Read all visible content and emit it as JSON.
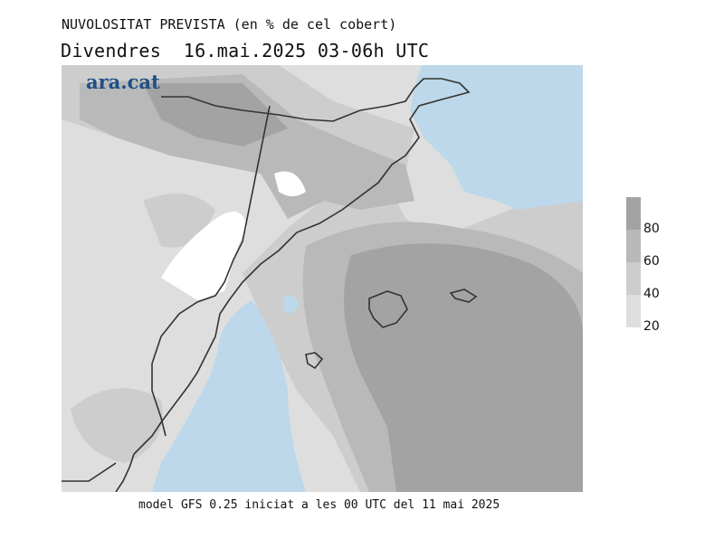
{
  "header": {
    "title": "NUVOLOSITAT PREVISTA (en % de cel cobert)",
    "subtitle": "Divendres  16.mai.2025 03-06h UTC"
  },
  "logo": {
    "text": "ara.cat"
  },
  "footer": {
    "model_info": "model GFS 0.25 iniciat a les 00 UTC del 11 mai 2025"
  },
  "legend": {
    "labels": [
      "80",
      "60",
      "40",
      "20"
    ],
    "colors": [
      "#a3a3a3",
      "#b9b9b9",
      "#cdcdcd",
      "#dedede"
    ]
  },
  "colors": {
    "sea": "#bcd8ea",
    "coast": "#333333",
    "cloud_20": "#dedede",
    "cloud_40": "#cdcdcd",
    "cloud_60": "#b9b9b9",
    "cloud_80": "#a3a3a3"
  }
}
